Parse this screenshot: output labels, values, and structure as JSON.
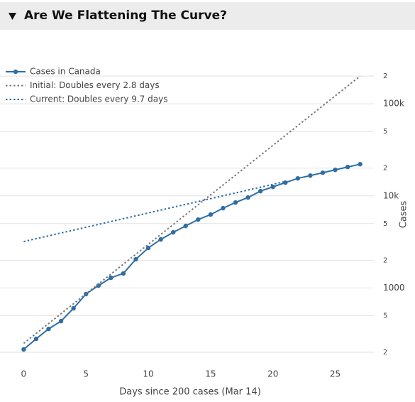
{
  "chart_data": {
    "type": "line",
    "title": "Are We Flattening The Curve?",
    "xlabel": "Days since 200 cases (Mar 14)",
    "ylabel": "Cases",
    "log_y": true,
    "grid": true,
    "legend": "top-left",
    "xlim": [
      -1.9,
      28.1
    ],
    "xticks": [
      0,
      5,
      10,
      15,
      20,
      25
    ],
    "ylim": [
      156,
      248000
    ],
    "yticks": [
      {
        "value": 200,
        "label": "2"
      },
      {
        "value": 500,
        "label": "5"
      },
      1000,
      {
        "value": 2000,
        "label": "2"
      },
      {
        "value": 5000,
        "label": "5"
      },
      {
        "value": 10000,
        "label": "10k"
      },
      {
        "value": 20000,
        "label": "2"
      },
      {
        "value": 50000,
        "label": "5"
      },
      {
        "value": 100000,
        "label": "100k"
      },
      {
        "value": 200000,
        "label": "2"
      }
    ],
    "series": [
      {
        "name": "Cases in Canada",
        "color": "#2f6ea5",
        "style": "solid",
        "markers": true,
        "x": [
          0,
          1,
          2,
          3,
          4,
          5,
          6,
          7,
          8,
          9,
          10,
          11,
          12,
          13,
          14,
          15,
          16,
          17,
          18,
          19,
          20,
          21,
          22,
          23,
          24,
          25,
          26,
          27
        ],
        "values": [
          215,
          280,
          359,
          436,
          601,
          858,
          1061,
          1290,
          1436,
          2048,
          2718,
          3363,
          4018,
          4712,
          5530,
          6265,
          7350,
          8471,
          9593,
          11250,
          12510,
          13920,
          15480,
          16620,
          17850,
          19170,
          20590,
          22080
        ]
      },
      {
        "name": "Initial: Doubles every 2.8 days",
        "color": "#777777",
        "style": "dotted",
        "markers": false,
        "x": [
          0,
          27
        ],
        "values": [
          250,
          200000
        ]
      },
      {
        "name": "Current: Doubles every 9.7 days",
        "color": "#2f6ea5",
        "style": "dotted",
        "markers": false,
        "x": [
          0,
          21
        ],
        "values": [
          3190,
          14330
        ]
      }
    ]
  }
}
